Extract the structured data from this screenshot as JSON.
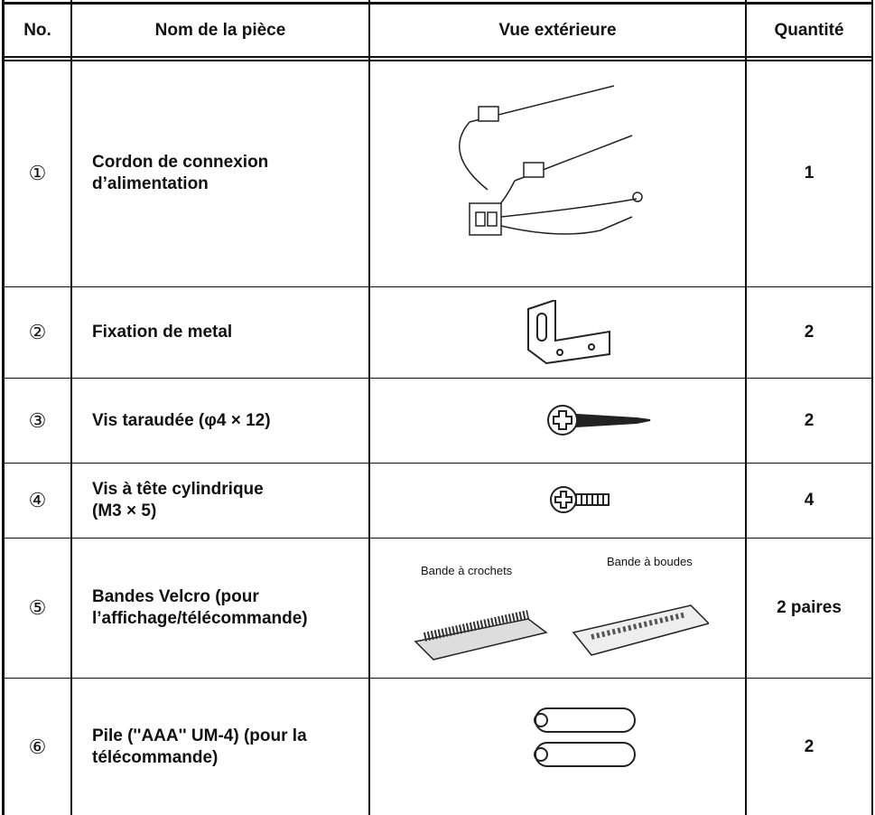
{
  "table": {
    "header": [
      "No.",
      "Nom de la pièce",
      "Vue extérieure",
      "Quantité"
    ],
    "rows": [
      {
        "no": "①",
        "name": [
          "Cordon de connexion",
          "d’alimentation"
        ],
        "qty": "1"
      },
      {
        "no": "②",
        "name": [
          "Fixation de metal"
        ],
        "qty": "2"
      },
      {
        "no": "③",
        "name": [
          "Vis taraudée (φ4 × 12)"
        ],
        "qty": "2"
      },
      {
        "no": "④",
        "name": [
          "Vis à tête cylindrique",
          "(M3 × 5)"
        ],
        "qty": "4"
      },
      {
        "no": "⑤",
        "name": [
          "Bandes Velcro (pour",
          "l’affichage/télécommande)"
        ],
        "qty": "2 paires",
        "labels": [
          "Bande à crochets",
          "Bande à boudes"
        ]
      },
      {
        "no": "⑥",
        "name": [
          "Pile (''AAA'' UM-4) (pour la",
          "télécommande)"
        ],
        "qty": "2"
      }
    ]
  }
}
